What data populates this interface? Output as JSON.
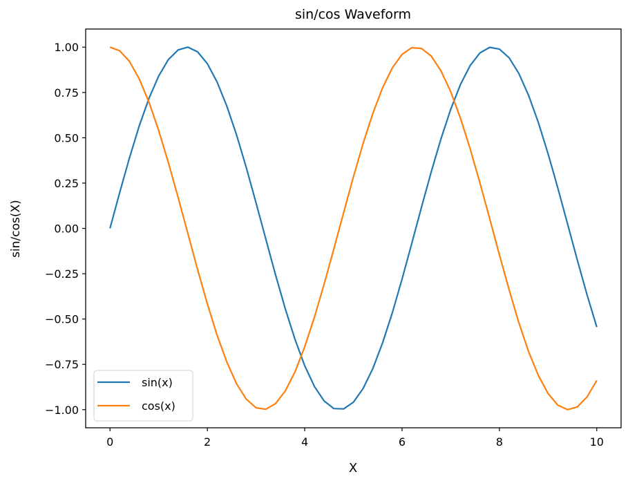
{
  "chart_data": {
    "type": "line",
    "title": "sin/cos Waveform",
    "xlabel": "X",
    "ylabel": "sin/cos(X)",
    "xlim": [
      -0.5,
      10.5
    ],
    "ylim": [
      -1.1,
      1.1
    ],
    "xticks": [
      0,
      2,
      4,
      6,
      8,
      10
    ],
    "xtick_labels": [
      "0",
      "2",
      "4",
      "6",
      "8",
      "10"
    ],
    "yticks": [
      1.0,
      0.75,
      0.5,
      0.25,
      0.0,
      -0.25,
      -0.5,
      -0.75,
      -1.0
    ],
    "ytick_labels": [
      "1.00",
      "0.75",
      "0.50",
      "0.25",
      "0.00",
      "−0.25",
      "−0.50",
      "−0.75",
      "−1.00"
    ],
    "grid": false,
    "legend_placement": "lower-left",
    "x": [
      0,
      0.2,
      0.4,
      0.6,
      0.8,
      1.0,
      1.2,
      1.4,
      1.6,
      1.8,
      2.0,
      2.2,
      2.4,
      2.6,
      2.8,
      3.0,
      3.2,
      3.4,
      3.6,
      3.8,
      4.0,
      4.2,
      4.4,
      4.6,
      4.8,
      5.0,
      5.2,
      5.4,
      5.6,
      5.8,
      6.0,
      6.2,
      6.4,
      6.6,
      6.8,
      7.0,
      7.2,
      7.4,
      7.6,
      7.8,
      8.0,
      8.2,
      8.4,
      8.6,
      8.8,
      9.0,
      9.2,
      9.4,
      9.6,
      9.8,
      10.0
    ],
    "series": [
      {
        "name": "sin(x)",
        "color": "#1f77b4",
        "values": [
          0,
          0.199,
          0.389,
          0.565,
          0.717,
          0.841,
          0.932,
          0.985,
          1.0,
          0.974,
          0.909,
          0.808,
          0.675,
          0.516,
          0.335,
          0.141,
          -0.058,
          -0.256,
          -0.443,
          -0.612,
          -0.757,
          -0.872,
          -0.952,
          -0.994,
          -0.996,
          -0.959,
          -0.883,
          -0.773,
          -0.631,
          -0.465,
          -0.279,
          -0.083,
          0.117,
          0.312,
          0.494,
          0.657,
          0.794,
          0.899,
          0.968,
          0.999,
          0.989,
          0.941,
          0.855,
          0.734,
          0.585,
          0.412,
          0.223,
          0.025,
          -0.174,
          -0.366,
          -0.544
        ]
      },
      {
        "name": "cos(x)",
        "color": "#ff7f0e",
        "values": [
          1,
          0.98,
          0.921,
          0.825,
          0.697,
          0.54,
          0.362,
          0.17,
          -0.029,
          -0.227,
          -0.416,
          -0.589,
          -0.737,
          -0.857,
          -0.942,
          -0.99,
          -0.998,
          -0.967,
          -0.897,
          -0.791,
          -0.654,
          -0.49,
          -0.307,
          -0.112,
          0.087,
          0.284,
          0.469,
          0.635,
          0.776,
          0.886,
          0.96,
          0.997,
          0.993,
          0.951,
          0.869,
          0.754,
          0.608,
          0.438,
          0.251,
          0.054,
          -0.146,
          -0.339,
          -0.52,
          -0.68,
          -0.811,
          -0.911,
          -0.975,
          -1.0,
          -0.985,
          -0.93,
          -0.839
        ]
      }
    ]
  }
}
